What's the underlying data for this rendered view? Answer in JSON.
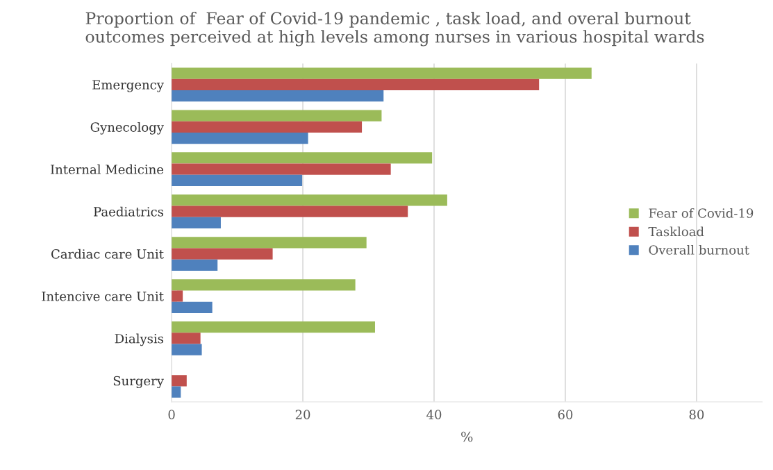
{
  "chart_data": {
    "type": "bar",
    "orientation": "horizontal",
    "title": "Proportion of  Fear of Covid-19 pandemic , task load, and overal burnout\noutcomes perceived at high levels among nurses in various hospital wards",
    "xlabel": "%",
    "categories": [
      "Emergency",
      "Gynecology",
      "Internal Medicine",
      "Paediatrics",
      "Cardiac care Unit",
      "Intencive care Unit",
      "Dialysis",
      "Surgery"
    ],
    "series": [
      {
        "name": "Fear of Covid-19",
        "color": "#9bbb59",
        "values": [
          64.0,
          32.0,
          39.7,
          42.0,
          29.7,
          28.0,
          31.0,
          0
        ]
      },
      {
        "name": "Taskload",
        "color": "#c0504d",
        "values": [
          56.0,
          29.0,
          33.4,
          36.0,
          15.4,
          1.7,
          4.4,
          2.3
        ]
      },
      {
        "name": "Overall burnout",
        "color": "#4f81bd",
        "values": [
          32.3,
          20.8,
          19.9,
          7.5,
          7.0,
          6.2,
          4.6,
          1.4
        ]
      }
    ],
    "xlim": [
      0,
      90
    ],
    "xticks": [
      0,
      20,
      40,
      60,
      80
    ],
    "grid": "x",
    "legend": "right"
  }
}
